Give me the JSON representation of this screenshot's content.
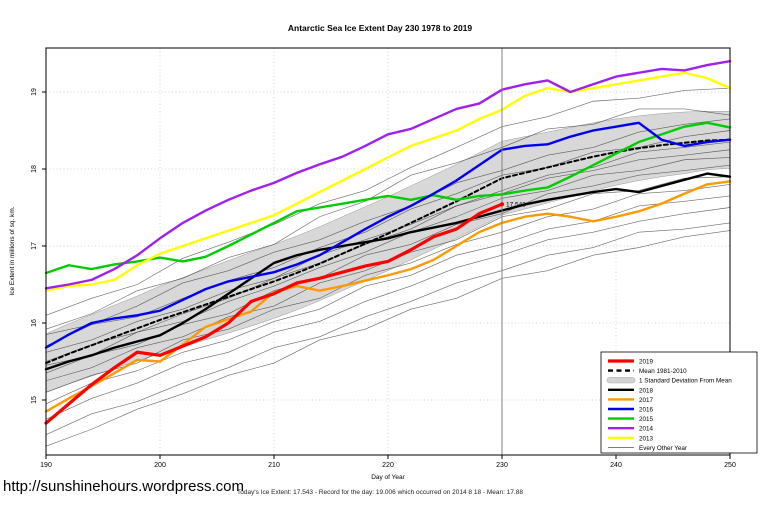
{
  "title": "Antarctic Sea Ice Extent Day 230 1978 to 2019",
  "footer": {
    "url": "http://sunshinehours.wordpress.com",
    "summary": "Today's Ice Extent: 17.543  - Record for the day: 19.006 which occurred on 2014 8 18  - Mean: 17.88"
  },
  "annotation": {
    "label": "17.543",
    "day": 230,
    "value": 17.543,
    "color": "#ff0000"
  },
  "reference_line": {
    "day": 230,
    "color": "#808080"
  },
  "axes": {
    "x": {
      "label": "Day of Year",
      "ticks": [
        "190",
        "200",
        "210",
        "220",
        "230",
        "240",
        "250"
      ],
      "min": 190,
      "max": 250
    },
    "y": {
      "label": "Ice Extent in millions of sq. km.",
      "ticks": [
        "15",
        "16",
        "17",
        "18",
        "19"
      ],
      "min": 14.3,
      "max": 19.6
    }
  },
  "legend": {
    "items": [
      {
        "label": "2019",
        "color": "#ff0000",
        "kind": "line",
        "width": 3
      },
      {
        "label": "Mean 1981-2010",
        "color": "#000000",
        "kind": "dashed",
        "width": 2
      },
      {
        "label": "1 Standard Deviation From Mean",
        "color": "#d3d3d3",
        "kind": "band"
      },
      {
        "label": "2018",
        "color": "#000000",
        "kind": "line",
        "width": 2.4
      },
      {
        "label": "2017",
        "color": "#ff9900",
        "kind": "line",
        "width": 2.4
      },
      {
        "label": "2016",
        "color": "#0000ee",
        "kind": "line",
        "width": 2.4
      },
      {
        "label": "2015",
        "color": "#00cc00",
        "kind": "line",
        "width": 2.4
      },
      {
        "label": "2014",
        "color": "#a020f0",
        "kind": "line",
        "width": 2.4
      },
      {
        "label": "2013",
        "color": "#ffff00",
        "kind": "line",
        "width": 2.4
      },
      {
        "label": "Every Other Year",
        "color": "#555555",
        "kind": "thin",
        "width": 0.8
      }
    ]
  },
  "chart_data": {
    "type": "line",
    "title": "Antarctic Sea Ice Extent Day 230 1978 to 2019",
    "xlabel": "Day of Year",
    "ylabel": "Ice Extent in millions of sq. km.",
    "xlim": [
      190,
      250
    ],
    "ylim": [
      14.3,
      19.6
    ],
    "grid": "dotted",
    "legend_position": "right-bottom",
    "x_start": 190,
    "x_step": 2,
    "band": {
      "name": "1 Standard Deviation From Mean",
      "color": "#d8d8d8",
      "mean": [
        15.48,
        15.6,
        15.71,
        15.82,
        15.93,
        16.04,
        16.14,
        16.24,
        16.34,
        16.44,
        16.54,
        16.65,
        16.77,
        16.9,
        17.03,
        17.16,
        17.3,
        17.44,
        17.58,
        17.73,
        17.88,
        17.95,
        18.02,
        18.09,
        18.16,
        18.22,
        18.27,
        18.31,
        18.34,
        18.37,
        18.38
      ],
      "std": [
        0.38,
        0.39,
        0.4,
        0.41,
        0.42,
        0.44,
        0.45,
        0.46,
        0.47,
        0.48,
        0.48,
        0.48,
        0.48,
        0.48,
        0.48,
        0.48,
        0.48,
        0.48,
        0.48,
        0.48,
        0.48,
        0.47,
        0.46,
        0.45,
        0.44,
        0.43,
        0.42,
        0.41,
        0.4,
        0.38,
        0.37
      ]
    },
    "series": [
      {
        "name": "Mean 1981-2010",
        "color": "#000000",
        "width": 2,
        "dash": "4 3",
        "values": [
          15.48,
          15.6,
          15.71,
          15.82,
          15.93,
          16.04,
          16.14,
          16.24,
          16.34,
          16.44,
          16.54,
          16.65,
          16.77,
          16.9,
          17.03,
          17.16,
          17.3,
          17.44,
          17.58,
          17.73,
          17.88,
          17.95,
          18.02,
          18.09,
          18.16,
          18.22,
          18.27,
          18.31,
          18.34,
          18.37,
          18.38
        ]
      },
      {
        "name": "2017",
        "color": "#ff9900",
        "width": 2.4,
        "dash": null,
        "values": [
          14.85,
          15.02,
          15.18,
          15.35,
          15.52,
          15.5,
          15.72,
          15.95,
          16.05,
          16.15,
          16.4,
          16.48,
          16.42,
          16.48,
          16.55,
          16.62,
          16.7,
          16.82,
          17.0,
          17.18,
          17.3,
          17.38,
          17.42,
          17.38,
          17.32,
          17.38,
          17.45,
          17.55,
          17.68,
          17.8,
          17.84
        ]
      },
      {
        "name": "2018",
        "color": "#000000",
        "width": 2.4,
        "dash": null,
        "values": [
          15.4,
          15.5,
          15.58,
          15.68,
          15.76,
          15.84,
          16.0,
          16.18,
          16.38,
          16.58,
          16.78,
          16.88,
          16.95,
          17.0,
          17.05,
          17.1,
          17.18,
          17.24,
          17.3,
          17.38,
          17.46,
          17.54,
          17.6,
          17.65,
          17.7,
          17.74,
          17.7,
          17.78,
          17.86,
          17.94,
          17.9
        ]
      },
      {
        "name": "2015",
        "color": "#00cc00",
        "width": 2.4,
        "dash": null,
        "values": [
          16.65,
          16.75,
          16.7,
          16.76,
          16.8,
          16.85,
          16.8,
          16.86,
          17.0,
          17.15,
          17.3,
          17.45,
          17.5,
          17.55,
          17.6,
          17.65,
          17.6,
          17.66,
          17.6,
          17.65,
          17.67,
          17.72,
          17.76,
          17.9,
          18.05,
          18.2,
          18.35,
          18.45,
          18.55,
          18.6,
          18.54
        ]
      },
      {
        "name": "2013",
        "color": "#ffff00",
        "width": 2.4,
        "dash": null,
        "values": [
          16.42,
          16.48,
          16.5,
          16.56,
          16.75,
          16.9,
          17.0,
          17.1,
          17.2,
          17.3,
          17.4,
          17.55,
          17.7,
          17.85,
          18.0,
          18.15,
          18.3,
          18.4,
          18.5,
          18.65,
          18.77,
          18.95,
          19.05,
          19.0,
          19.05,
          19.1,
          19.15,
          19.2,
          19.25,
          19.18,
          19.05
        ]
      },
      {
        "name": "2014",
        "color": "#a020f0",
        "width": 2.4,
        "dash": null,
        "values": [
          16.45,
          16.5,
          16.56,
          16.7,
          16.88,
          17.1,
          17.3,
          17.46,
          17.6,
          17.72,
          17.82,
          17.95,
          18.06,
          18.16,
          18.3,
          18.45,
          18.52,
          18.65,
          18.78,
          18.85,
          19.03,
          19.1,
          19.15,
          19.0,
          19.1,
          19.2,
          19.25,
          19.3,
          19.28,
          19.35,
          19.4
        ]
      },
      {
        "name": "2016",
        "color": "#0000ee",
        "width": 2.4,
        "dash": null,
        "values": [
          15.68,
          15.85,
          16.0,
          16.06,
          16.1,
          16.16,
          16.3,
          16.44,
          16.54,
          16.6,
          16.66,
          16.76,
          16.88,
          17.05,
          17.22,
          17.38,
          17.52,
          17.68,
          17.85,
          18.05,
          18.25,
          18.3,
          18.32,
          18.42,
          18.5,
          18.55,
          18.6,
          18.38,
          18.3,
          18.35,
          18.38
        ]
      },
      {
        "name": "2019",
        "color": "#ff0000",
        "width": 3.2,
        "dash": null,
        "values": [
          14.7,
          14.95,
          15.2,
          15.42,
          15.62,
          15.58,
          15.7,
          15.82,
          16.0,
          16.28,
          16.38,
          16.52,
          16.58,
          16.66,
          16.74,
          16.8,
          16.95,
          17.12,
          17.22,
          17.42,
          17.543
        ]
      }
    ],
    "background_years": {
      "name": "Every Other Year",
      "color": "#3a3a3a",
      "x_step": 4,
      "values": [
        [
          16.1,
          16.32,
          16.5,
          16.84,
          17.05,
          17.28,
          17.55,
          17.72,
          18.02,
          18.28,
          18.55,
          18.68,
          18.88,
          18.92,
          19.02,
          19.05
        ],
        [
          15.92,
          16.12,
          16.42,
          16.58,
          16.85,
          17.02,
          17.38,
          17.58,
          17.92,
          18.08,
          18.28,
          18.52,
          18.58,
          18.78,
          18.78,
          18.7
        ],
        [
          15.85,
          15.98,
          16.22,
          16.52,
          16.68,
          16.92,
          17.08,
          17.32,
          17.52,
          17.82,
          17.98,
          18.18,
          18.28,
          18.48,
          18.58,
          18.65
        ],
        [
          15.7,
          15.98,
          16.08,
          16.32,
          16.55,
          16.72,
          16.98,
          17.18,
          17.48,
          17.68,
          17.92,
          18.02,
          18.22,
          18.28,
          18.42,
          18.5
        ],
        [
          15.62,
          15.78,
          16.02,
          16.18,
          16.42,
          16.58,
          16.88,
          17.08,
          17.28,
          17.52,
          17.72,
          17.92,
          18.02,
          18.22,
          18.28,
          18.35
        ],
        [
          15.5,
          15.72,
          15.88,
          16.12,
          16.32,
          16.58,
          16.78,
          17.02,
          17.22,
          17.52,
          17.68,
          17.88,
          17.98,
          18.12,
          18.18,
          18.25
        ],
        [
          15.45,
          15.58,
          15.88,
          16.02,
          16.28,
          16.48,
          16.72,
          16.92,
          17.18,
          17.38,
          17.62,
          17.72,
          17.92,
          17.98,
          18.12,
          18.15
        ],
        [
          15.35,
          15.58,
          15.72,
          15.98,
          16.12,
          16.42,
          16.58,
          16.88,
          17.02,
          17.28,
          17.42,
          17.68,
          17.78,
          17.92,
          17.98,
          18.05
        ],
        [
          15.25,
          15.42,
          15.68,
          15.82,
          16.08,
          16.22,
          16.52,
          16.68,
          16.92,
          17.08,
          17.38,
          17.48,
          17.68,
          17.72,
          17.88,
          17.9
        ],
        [
          15.1,
          15.32,
          15.48,
          15.78,
          15.92,
          16.18,
          16.32,
          16.62,
          16.78,
          17.02,
          17.18,
          17.38,
          17.48,
          17.68,
          17.72,
          17.8
        ],
        [
          14.95,
          15.22,
          15.38,
          15.62,
          15.78,
          16.02,
          16.18,
          16.48,
          16.62,
          16.88,
          17.02,
          17.22,
          17.32,
          17.52,
          17.58,
          17.65
        ],
        [
          14.75,
          15.02,
          15.22,
          15.48,
          15.62,
          15.88,
          16.02,
          16.28,
          16.48,
          16.72,
          16.88,
          17.08,
          17.18,
          17.32,
          17.42,
          17.5
        ],
        [
          14.55,
          14.82,
          14.98,
          15.22,
          15.42,
          15.68,
          15.82,
          16.08,
          16.28,
          16.52,
          16.68,
          16.88,
          16.98,
          17.18,
          17.22,
          17.3
        ],
        [
          14.4,
          14.62,
          14.88,
          15.08,
          15.32,
          15.48,
          15.78,
          15.92,
          16.18,
          16.32,
          16.58,
          16.68,
          16.88,
          16.98,
          17.12,
          17.2
        ]
      ]
    }
  }
}
